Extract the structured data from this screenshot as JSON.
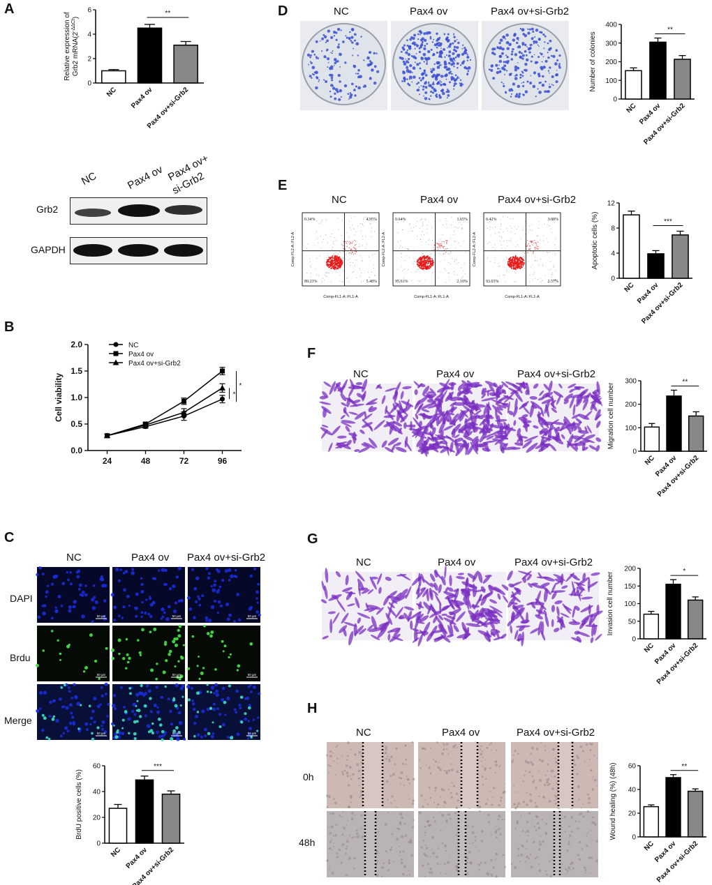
{
  "panels": {
    "A": "A",
    "B": "B",
    "C": "C",
    "D": "D",
    "E": "E",
    "F": "F",
    "G": "G",
    "H": "H"
  },
  "groups": {
    "nc": "NC",
    "ov": "Pax4 ov",
    "ovsi": "Pax4 ov+si-Grb2",
    "ovsi_line1": "Pax4 ov+",
    "ovsi_line2": "si-Grb2"
  },
  "western": {
    "band1": "Grb2",
    "band2": "GAPDH"
  },
  "c_rows": [
    "DAPI",
    "Brdu",
    "Merge"
  ],
  "scale_bar": "50 µm",
  "h_rows": [
    "0h",
    "48h"
  ],
  "flow": {
    "y_label": "Comp-FL2-A::FL2-A",
    "x_label": "Comp-FL1-A::FL1-A",
    "quadrants": [
      [
        "0.34%",
        "4.95%",
        "89.23%",
        "5.48%"
      ],
      [
        "0.64%",
        "1.65%",
        "95.61%",
        "2.10%"
      ],
      [
        "0.42%",
        "3.98%",
        "93.03%",
        "2.57%"
      ]
    ]
  },
  "colors": {
    "nc_bar": "#ffffff",
    "ov_bar": "#000000",
    "ovsi_bar": "#888888",
    "dapi": "#1a2ee0",
    "brdu": "#46e64a",
    "crystal_violet": "#7a2fc0",
    "colony": "#3a4fd0",
    "flow_dots": "#e81818"
  },
  "chart_data": [
    {
      "id": "A",
      "type": "bar",
      "categories": [
        "NC",
        "Pax4 ov",
        "Pax4 ov+si-Grb2"
      ],
      "values": [
        1.0,
        4.5,
        3.1
      ],
      "errors": [
        0.1,
        0.3,
        0.3
      ],
      "ylabel_l1": "Relative expression of",
      "ylabel_l2": "Grb2 mRNA(2",
      "ylabel_sup": "-ΔΔCt",
      "ylabel_end": ")",
      "ylim": [
        0,
        6
      ],
      "yticks": [
        "0",
        "2",
        "4",
        "6"
      ],
      "significance": "**"
    },
    {
      "id": "B",
      "type": "line",
      "x": [
        24,
        48,
        72,
        96
      ],
      "ylabel": "Cell viability",
      "ylim": [
        0,
        2.0
      ],
      "yticks": [
        "0.0",
        "0.5",
        "1.0",
        "1.5",
        "2.0"
      ],
      "xticks": [
        "24",
        "48",
        "72",
        "96"
      ],
      "series": [
        {
          "name": "NC",
          "marker": "circle",
          "values": [
            0.28,
            0.45,
            0.65,
            0.97
          ],
          "errors": [
            0.03,
            0.03,
            0.08,
            0.07
          ]
        },
        {
          "name": "Pax4 ov",
          "marker": "square",
          "values": [
            0.28,
            0.5,
            0.93,
            1.5
          ],
          "errors": [
            0.03,
            0.03,
            0.06,
            0.07
          ]
        },
        {
          "name": "Pax4 ov+si-Grb2",
          "marker": "triangle",
          "values": [
            0.28,
            0.48,
            0.72,
            1.18
          ],
          "errors": [
            0.03,
            0.03,
            0.07,
            0.08
          ]
        }
      ],
      "significance": [
        "*",
        "*"
      ]
    },
    {
      "id": "C",
      "type": "bar",
      "categories": [
        "NC",
        "Pax4 ov",
        "Pax4 ov+si-Grb2"
      ],
      "values": [
        27,
        49,
        38
      ],
      "errors": [
        3,
        3,
        2.5
      ],
      "ylabel": "BrdU positive cells (%)",
      "ylim": [
        0,
        60
      ],
      "yticks": [
        "0",
        "20",
        "40",
        "60"
      ],
      "significance": "***"
    },
    {
      "id": "D",
      "type": "bar",
      "categories": [
        "NC",
        "Pax4 ov",
        "Pax4 ov+si-Grb2"
      ],
      "values": [
        152,
        305,
        213
      ],
      "errors": [
        15,
        22,
        20
      ],
      "ylabel": "Number of colonies",
      "ylim": [
        0,
        400
      ],
      "yticks": [
        "0",
        "100",
        "200",
        "300",
        "400"
      ],
      "significance": "**"
    },
    {
      "id": "E",
      "type": "bar",
      "categories": [
        "NC",
        "Pax4 ov",
        "Pax4 ov+si-Grb2"
      ],
      "values": [
        10.1,
        3.9,
        6.9
      ],
      "errors": [
        0.6,
        0.5,
        0.6
      ],
      "ylabel": "Apoptotic cells (%)",
      "ylim": [
        0,
        12
      ],
      "yticks": [
        "0",
        "4",
        "8",
        "12"
      ],
      "significance": "***"
    },
    {
      "id": "F",
      "type": "bar",
      "categories": [
        "NC",
        "Pax4 ov",
        "Pax4 ov+si-Grb2"
      ],
      "values": [
        103,
        235,
        150
      ],
      "errors": [
        15,
        25,
        18
      ],
      "ylabel": "Migration cell number",
      "ylim": [
        0,
        300
      ],
      "yticks": [
        "0",
        "100",
        "200",
        "300"
      ],
      "significance": "**"
    },
    {
      "id": "G",
      "type": "bar",
      "categories": [
        "NC",
        "Pax4 ov",
        "Pax4 ov+si-Grb2"
      ],
      "values": [
        70,
        155,
        110
      ],
      "errors": [
        8,
        13,
        9
      ],
      "ylabel": "Invasion cell number",
      "ylim": [
        0,
        200
      ],
      "yticks": [
        "0",
        "50",
        "100",
        "150",
        "200"
      ],
      "significance": "*"
    },
    {
      "id": "H",
      "type": "bar",
      "categories": [
        "NC",
        "Pax4 ov",
        "Pax4 ov+si-Grb2"
      ],
      "values": [
        25.5,
        50,
        38.5
      ],
      "errors": [
        1.5,
        2.5,
        2
      ],
      "ylabel": "Wound healing (%) (48h)",
      "ylim": [
        0,
        60
      ],
      "yticks": [
        "0",
        "20",
        "40",
        "60"
      ],
      "significance": "**"
    }
  ]
}
